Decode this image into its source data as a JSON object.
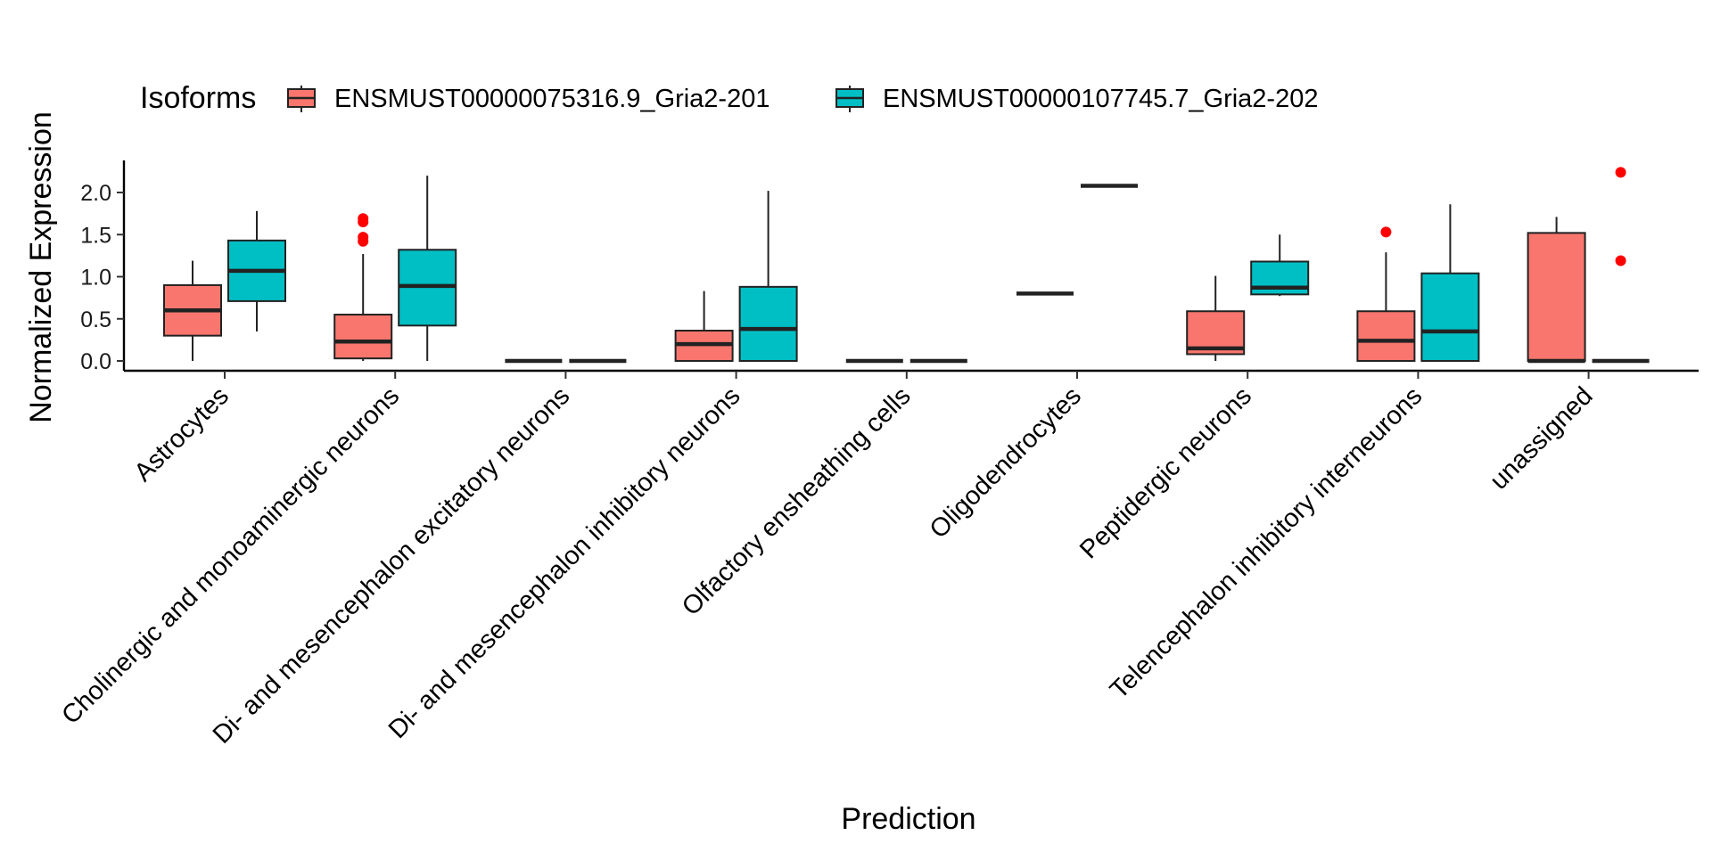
{
  "chart_data": {
    "type": "boxplot",
    "xlabel": "Prediction",
    "ylabel": "Normalized Expression",
    "ylim": [
      -0.1,
      2.42
    ],
    "yticks": [
      0.0,
      0.5,
      1.0,
      1.5,
      2.0
    ],
    "ytick_labels": [
      "0.0",
      "0.5",
      "1.0",
      "1.5",
      "2.0"
    ],
    "grid": false,
    "legend": {
      "title": "Isoforms",
      "position": "top",
      "entries": [
        "ENSMUST00000075316.9_Gria2-201",
        "ENSMUST00000107745.7_Gria2-202"
      ]
    },
    "categories": [
      "Astrocytes",
      "Cholinergic and monoaminergic neurons",
      "Di- and mesencephalon excitatory neurons",
      "Di- and mesencephalon inhibitory neurons",
      "Olfactory ensheathing cells",
      "Oligodendrocytes",
      "Peptidergic neurons",
      "Telencephalon inhibitory interneurons",
      "unassigned"
    ],
    "series": [
      {
        "name": "ENSMUST00000075316.9_Gria2-201",
        "color": "#F8766D",
        "boxes": [
          {
            "min": 0.0,
            "q1": 0.3,
            "median": 0.6,
            "q3": 0.9,
            "max": 1.19,
            "outliers": []
          },
          {
            "min": 0.0,
            "q1": 0.03,
            "median": 0.23,
            "q3": 0.55,
            "max": 1.27,
            "outliers": [
              1.42,
              1.47,
              1.65,
              1.69
            ]
          },
          {
            "min": 0.0,
            "q1": 0.0,
            "median": 0.0,
            "q3": 0.0,
            "max": 0.0,
            "outliers": []
          },
          {
            "min": 0.0,
            "q1": 0.0,
            "median": 0.2,
            "q3": 0.36,
            "max": 0.83,
            "outliers": []
          },
          {
            "min": 0.0,
            "q1": 0.0,
            "median": 0.0,
            "q3": 0.0,
            "max": 0.0,
            "outliers": []
          },
          {
            "min": 0.8,
            "q1": 0.8,
            "median": 0.8,
            "q3": 0.8,
            "max": 0.8,
            "outliers": []
          },
          {
            "min": 0.0,
            "q1": 0.08,
            "median": 0.15,
            "q3": 0.59,
            "max": 1.01,
            "outliers": []
          },
          {
            "min": 0.0,
            "q1": 0.0,
            "median": 0.24,
            "q3": 0.59,
            "max": 1.29,
            "outliers": [
              1.53
            ]
          },
          {
            "min": 0.0,
            "q1": 0.0,
            "median": 0.0,
            "q3": 1.52,
            "max": 1.71,
            "outliers": []
          }
        ]
      },
      {
        "name": "ENSMUST00000107745.7_Gria2-202",
        "color": "#00BFC4",
        "boxes": [
          {
            "min": 0.35,
            "q1": 0.71,
            "median": 1.07,
            "q3": 1.43,
            "max": 1.78,
            "outliers": []
          },
          {
            "min": 0.0,
            "q1": 0.42,
            "median": 0.89,
            "q3": 1.32,
            "max": 2.2,
            "outliers": []
          },
          {
            "min": 0.0,
            "q1": 0.0,
            "median": 0.0,
            "q3": 0.0,
            "max": 0.0,
            "outliers": []
          },
          {
            "min": 0.0,
            "q1": 0.0,
            "median": 0.38,
            "q3": 0.88,
            "max": 2.02,
            "outliers": []
          },
          {
            "min": 0.0,
            "q1": 0.0,
            "median": 0.0,
            "q3": 0.0,
            "max": 0.0,
            "outliers": []
          },
          {
            "min": 2.08,
            "q1": 2.08,
            "median": 2.08,
            "q3": 2.08,
            "max": 2.08,
            "outliers": []
          },
          {
            "min": 0.77,
            "q1": 0.79,
            "median": 0.87,
            "q3": 1.18,
            "max": 1.5,
            "outliers": []
          },
          {
            "min": 0.0,
            "q1": 0.0,
            "median": 0.35,
            "q3": 1.04,
            "max": 1.86,
            "outliers": []
          },
          {
            "min": 0.0,
            "q1": 0.0,
            "median": 0.0,
            "q3": 0.0,
            "max": 0.0,
            "outliers": [
              1.19,
              2.24
            ]
          }
        ]
      }
    ],
    "outlier_color": "#FF0000"
  }
}
